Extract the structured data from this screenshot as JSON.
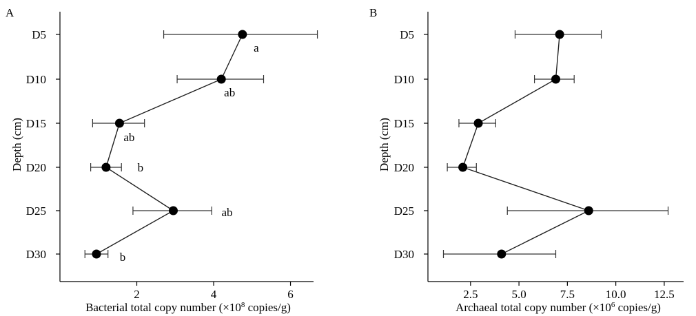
{
  "chart_data": [
    {
      "type": "scatter",
      "panel_label": "A",
      "xlabel": "Bacterial total copy number (×10",
      "xlabel_sup": "8",
      "xlabel_tail": " copies/g)",
      "ylabel": "Depth (cm)",
      "categories": [
        "D5",
        "D10",
        "D15",
        "D20",
        "D25",
        "D30"
      ],
      "xlim": [
        0,
        6.6
      ],
      "xticks": [
        2,
        4,
        6
      ],
      "xtick_labels": [
        "2",
        "4",
        "6"
      ],
      "points": [
        {
          "depth": "D5",
          "mean": 4.75,
          "err_low": 2.7,
          "err_high": 6.7,
          "sig": "a"
        },
        {
          "depth": "D10",
          "mean": 4.2,
          "err_low": 3.05,
          "err_high": 5.3,
          "sig": "ab"
        },
        {
          "depth": "D15",
          "mean": 1.55,
          "err_low": 0.85,
          "err_high": 2.2,
          "sig": "ab"
        },
        {
          "depth": "D20",
          "mean": 1.2,
          "err_low": 0.8,
          "err_high": 1.6,
          "sig": "b"
        },
        {
          "depth": "D25",
          "mean": 2.95,
          "err_low": 1.9,
          "err_high": 3.95,
          "sig": "ab"
        },
        {
          "depth": "D30",
          "mean": 0.95,
          "err_low": 0.65,
          "err_high": 1.25,
          "sig": "b"
        }
      ],
      "grid": false,
      "legend": "none"
    },
    {
      "type": "scatter",
      "panel_label": "B",
      "xlabel": "Archaeal total copy number (×10",
      "xlabel_sup": "6",
      "xlabel_tail": " copies/g)",
      "ylabel": "Depth (cm)",
      "categories": [
        "D5",
        "D10",
        "D15",
        "D20",
        "D25",
        "D30"
      ],
      "xlim": [
        0.3,
        13.5
      ],
      "xticks": [
        2.5,
        5.0,
        7.5,
        10.0,
        12.5
      ],
      "xtick_labels": [
        "2.5",
        "5.0",
        "7.5",
        "10.0",
        "12.5"
      ],
      "points": [
        {
          "depth": "D5",
          "mean": 7.1,
          "err_low": 4.8,
          "err_high": 9.25,
          "sig": ""
        },
        {
          "depth": "D10",
          "mean": 6.9,
          "err_low": 5.8,
          "err_high": 7.85,
          "sig": ""
        },
        {
          "depth": "D15",
          "mean": 2.9,
          "err_low": 1.9,
          "err_high": 3.8,
          "sig": ""
        },
        {
          "depth": "D20",
          "mean": 2.1,
          "err_low": 1.3,
          "err_high": 2.8,
          "sig": ""
        },
        {
          "depth": "D25",
          "mean": 8.6,
          "err_low": 4.4,
          "err_high": 12.7,
          "sig": ""
        },
        {
          "depth": "D30",
          "mean": 4.1,
          "err_low": 1.1,
          "err_high": 6.9,
          "sig": ""
        }
      ],
      "grid": false,
      "legend": "none"
    }
  ]
}
